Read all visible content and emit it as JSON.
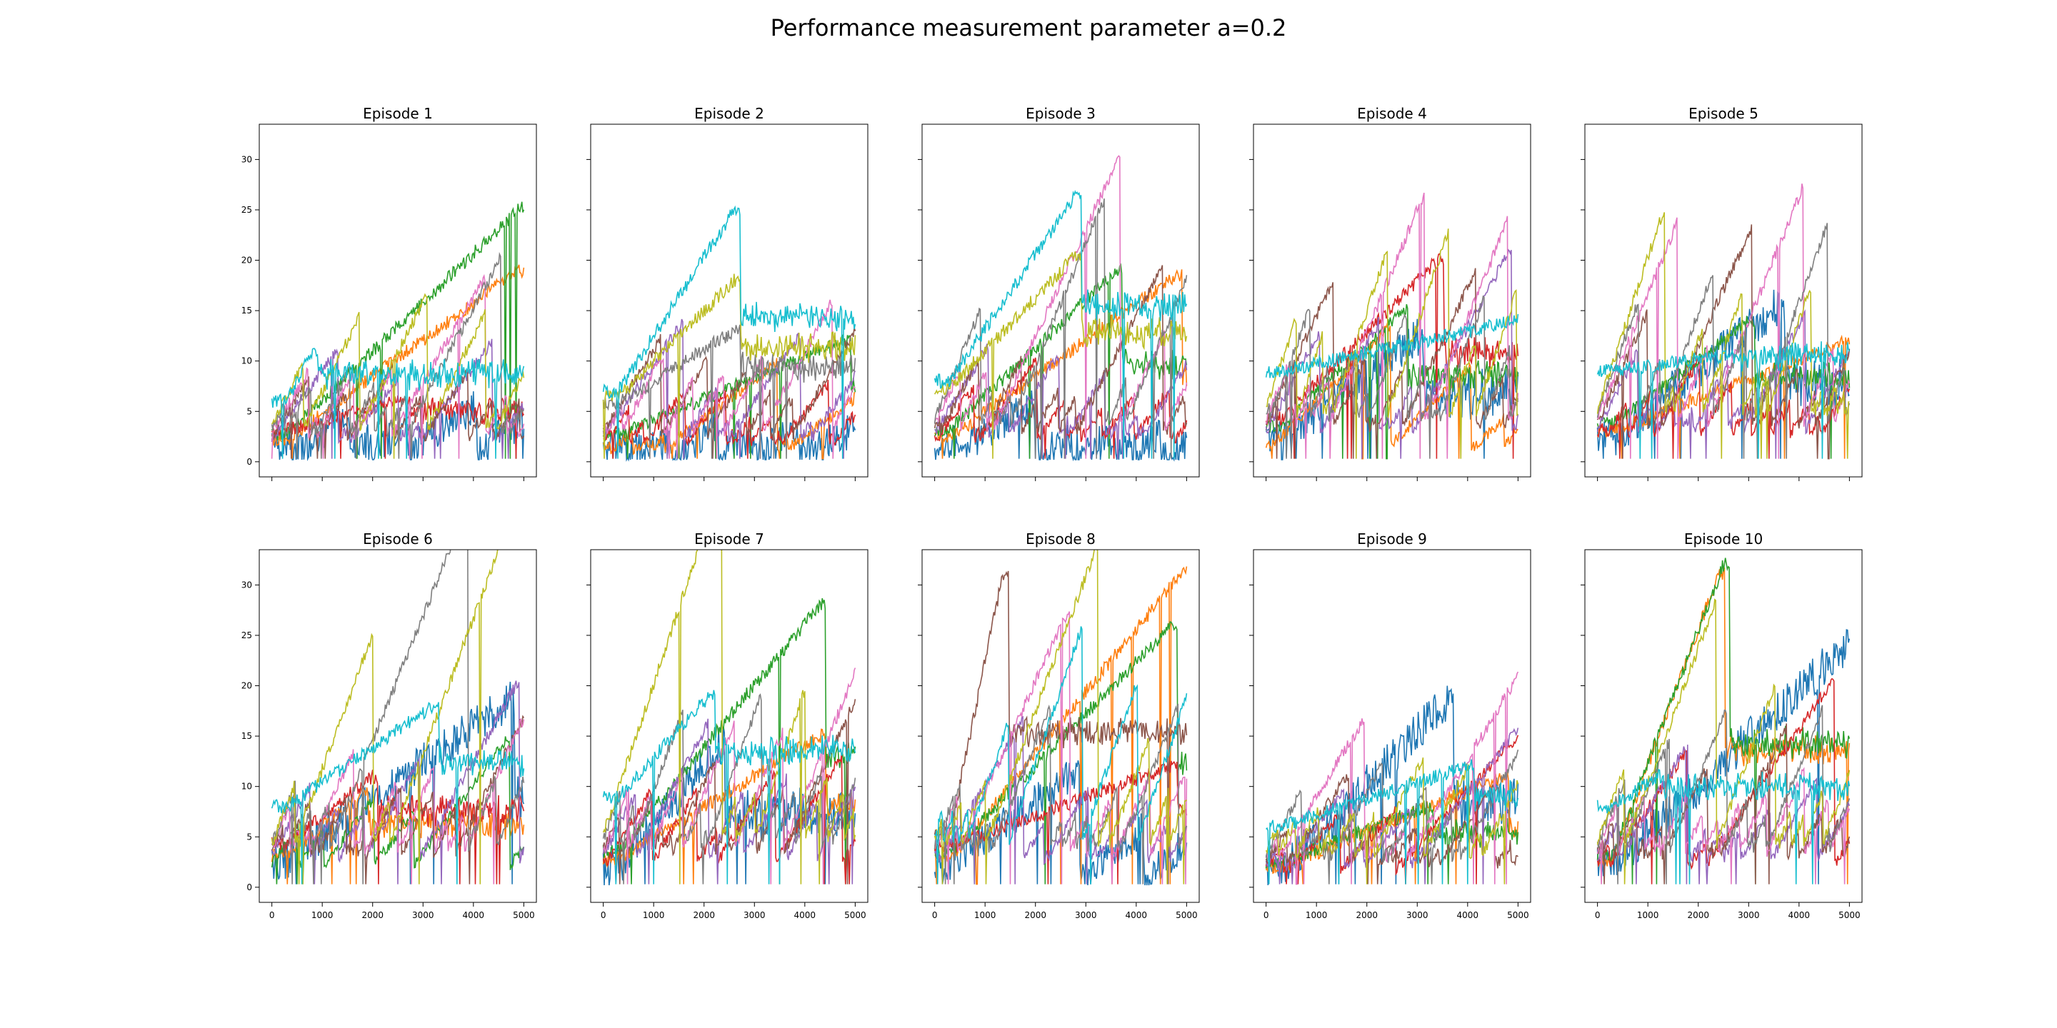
{
  "suptitle": "Performance measurement parameter a=0.2",
  "palette": [
    "#1f77b4",
    "#ff7f0e",
    "#2ca02c",
    "#d62728",
    "#9467bd",
    "#8c564b",
    "#e377c2",
    "#7f7f7f",
    "#bcbd22",
    "#17becf"
  ],
  "chart_data": {
    "type": "line",
    "layout": "2 rows x 5 columns, shared axes",
    "xlim": [
      -250,
      5250
    ],
    "ylim": [
      -1.5,
      33.5
    ],
    "xticks": [
      0,
      1000,
      2000,
      3000,
      4000,
      5000
    ],
    "yticks": [
      0,
      5,
      10,
      15,
      20,
      25,
      30
    ],
    "grid": false,
    "legend": "none",
    "series_per_panel": 10,
    "panels": [
      {
        "title": "Episode 1",
        "peaks": [
          [
            2,
            5000,
            25.5
          ],
          [
            1,
            4900,
            19
          ],
          [
            9,
            800,
            11
          ],
          [
            3,
            2500,
            6
          ]
        ],
        "base_top": 6.0,
        "base_low": 1.8
      },
      {
        "title": "Episode 2",
        "peaks": [
          [
            9,
            2600,
            25
          ],
          [
            8,
            2600,
            18
          ],
          [
            7,
            2600,
            13
          ],
          [
            2,
            4800,
            12
          ]
        ],
        "base_top": 7.0,
        "base_low": 1.5
      },
      {
        "title": "Episode 3",
        "peaks": [
          [
            9,
            2800,
            26.5
          ],
          [
            8,
            2800,
            20.5
          ],
          [
            2,
            3600,
            19
          ],
          [
            1,
            4800,
            18.5
          ]
        ],
        "base_top": 8.0,
        "base_low": 1.7
      },
      {
        "title": "Episode 4",
        "peaks": [
          [
            3,
            3400,
            20
          ],
          [
            2,
            2700,
            15
          ],
          [
            9,
            5000,
            14
          ],
          [
            0,
            3000,
            12.5
          ]
        ],
        "base_top": 9.0,
        "base_low": 2.0
      },
      {
        "title": "Episode 5",
        "peaks": [
          [
            0,
            3600,
            15.5
          ],
          [
            2,
            3000,
            14
          ],
          [
            1,
            5000,
            12
          ],
          [
            9,
            2500,
            10.5
          ]
        ],
        "base_top": 9.0,
        "base_low": 2.3
      },
      {
        "title": "Episode 6",
        "peaks": [
          [
            0,
            4700,
            18.5
          ],
          [
            9,
            3200,
            18
          ],
          [
            3,
            2000,
            11
          ],
          [
            1,
            1800,
            9.5
          ]
        ],
        "base_top": 8.0,
        "base_low": 2.5
      },
      {
        "title": "Episode 7",
        "peaks": [
          [
            2,
            4300,
            28
          ],
          [
            9,
            2100,
            19
          ],
          [
            1,
            4300,
            15
          ],
          [
            0,
            2300,
            14
          ]
        ],
        "base_top": 9.0,
        "base_low": 2.0
      },
      {
        "title": "Episode 8",
        "peaks": [
          [
            1,
            4950,
            31.5
          ],
          [
            2,
            4700,
            26
          ],
          [
            5,
            1350,
            31
          ],
          [
            3,
            4700,
            12
          ]
        ],
        "base_top": 8.0,
        "base_low": 2.0
      },
      {
        "title": "Episode 9",
        "peaks": [
          [
            0,
            3600,
            18.5
          ],
          [
            9,
            4000,
            12
          ],
          [
            1,
            4700,
            11
          ],
          [
            2,
            3200,
            8
          ]
        ],
        "base_top": 6.0,
        "base_low": 1.5
      },
      {
        "title": "Episode 10",
        "peaks": [
          [
            2,
            2500,
            32
          ],
          [
            1,
            2400,
            31
          ],
          [
            0,
            4950,
            24
          ],
          [
            9,
            1200,
            11
          ]
        ],
        "base_top": 8.0,
        "base_low": 2.0
      }
    ]
  }
}
